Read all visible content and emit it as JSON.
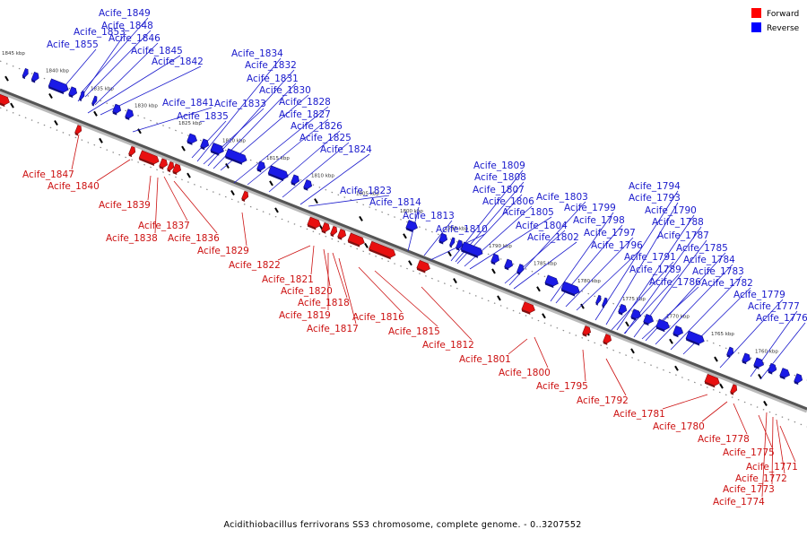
{
  "caption": "Acidithiobacillus ferrivorans SS3 chromosome, complete genome. - 0..3207552",
  "legend": [
    {
      "label": "Forward",
      "color": "#ff0000"
    },
    {
      "label": "Reverse",
      "color": "#0000ff"
    }
  ],
  "colors": {
    "forward": "#e81010",
    "reverse": "#1a1ae6",
    "forward_label": "#cc1111",
    "reverse_label": "#1a1acc",
    "axis": "#555555"
  },
  "scale_labels": [
    "1845 kbp",
    "1840 kbp",
    "1835 kbp",
    "1830 kbp",
    "1825 kbp",
    "1820 kbp",
    "1815 kbp",
    "1810 kbp",
    "1805 kbp",
    "1800 kbp",
    "1795 kbp",
    "1790 kbp",
    "1785 kbp",
    "1780 kbp",
    "1775 kbp",
    "1770 kbp",
    "1765 kbp",
    "1760 kbp"
  ],
  "reverse_genes": [
    "Acife_1849",
    "Acife_1848",
    "Acife_1853",
    "Acife_1846",
    "Acife_1855",
    "Acife_1845",
    "Acife_1842",
    "Acife_1834",
    "Acife_1832",
    "Acife_1831",
    "Acife_1830",
    "Acife_1841",
    "Acife_1833",
    "Acife_1828",
    "Acife_1835",
    "Acife_1827",
    "Acife_1826",
    "Acife_1825",
    "Acife_1824",
    "Acife_1823",
    "Acife_1814",
    "Acife_1809",
    "Acife_1808",
    "Acife_1807",
    "Acife_1806",
    "Acife_1805",
    "Acife_1813",
    "Acife_1804",
    "Acife_1810",
    "Acife_1803",
    "Acife_1802",
    "Acife_1799",
    "Acife_1798",
    "Acife_1797",
    "Acife_1796",
    "Acife_1794",
    "Acife_1793",
    "Acife_1790",
    "Acife_1788",
    "Acife_1787",
    "Acife_1785",
    "Acife_1791",
    "Acife_1784",
    "Acife_1789",
    "Acife_1783",
    "Acife_1786",
    "Acife_1782",
    "Acife_1779",
    "Acife_1777",
    "Acife_1776"
  ],
  "forward_genes": [
    "Acife_1847",
    "Acife_1840",
    "Acife_1839",
    "Acife_1837",
    "Acife_1838",
    "Acife_1836",
    "Acife_1829",
    "Acife_1822",
    "Acife_1821",
    "Acife_1820",
    "Acife_1818",
    "Acife_1819",
    "Acife_1816",
    "Acife_1817",
    "Acife_1815",
    "Acife_1812",
    "Acife_1801",
    "Acife_1800",
    "Acife_1795",
    "Acife_1792",
    "Acife_1781",
    "Acife_1780",
    "Acife_1778",
    "Acife_1775",
    "Acife_1771",
    "Acife_1772",
    "Acife_1773",
    "Acife_1774"
  ]
}
